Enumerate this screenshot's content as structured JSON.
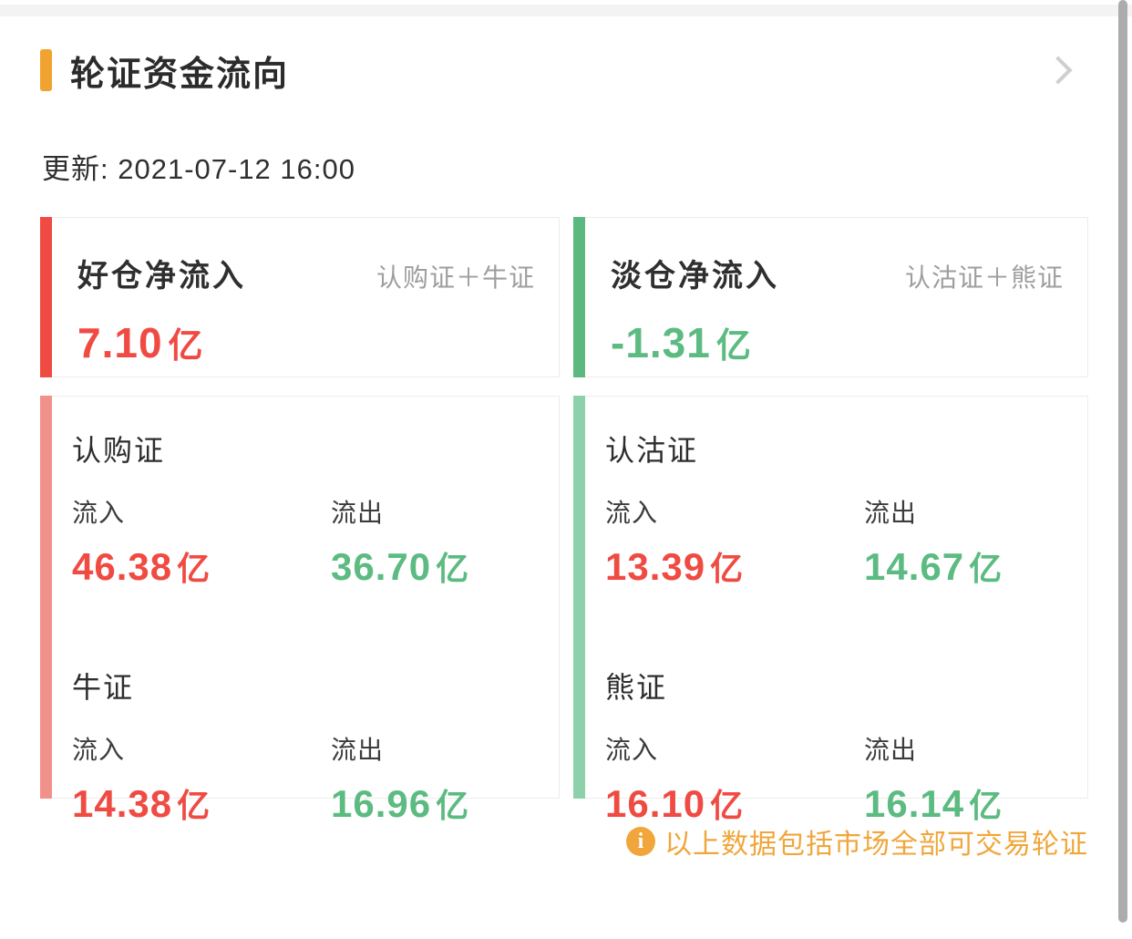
{
  "header": {
    "title": "轮证资金流向"
  },
  "updated": {
    "label": "更新: 2021-07-12 16:00"
  },
  "summary_cards": [
    {
      "title": "好仓净流入",
      "scope": "认购证＋牛证",
      "value": "7.10",
      "unit": "亿"
    },
    {
      "title": "淡仓净流入",
      "scope": "认沽证＋熊证",
      "value": "-1.31",
      "unit": "亿"
    }
  ],
  "detail_cards": [
    {
      "sections": [
        {
          "name": "认购证",
          "inflow_label": "流入",
          "inflow_value": "46.38",
          "inflow_unit": "亿",
          "outflow_label": "流出",
          "outflow_value": "36.70",
          "outflow_unit": "亿"
        },
        {
          "name": "牛证",
          "inflow_label": "流入",
          "inflow_value": "14.38",
          "inflow_unit": "亿",
          "outflow_label": "流出",
          "outflow_value": "16.96",
          "outflow_unit": "亿"
        }
      ]
    },
    {
      "sections": [
        {
          "name": "认沽证",
          "inflow_label": "流入",
          "inflow_value": "13.39",
          "inflow_unit": "亿",
          "outflow_label": "流出",
          "outflow_value": "14.67",
          "outflow_unit": "亿"
        },
        {
          "name": "熊证",
          "inflow_label": "流入",
          "inflow_value": "16.10",
          "inflow_unit": "亿",
          "outflow_label": "流出",
          "outflow_value": "16.14",
          "outflow_unit": "亿"
        }
      ]
    }
  ],
  "footer": {
    "icon_glyph": "i",
    "note": "以上数据包括市场全部可交易轮证"
  },
  "colors": {
    "accent_orange": "#F0A32E",
    "inflow_red": "#F04B43",
    "outflow_green": "#5BBB81",
    "summary_long_accent": "#F04B43",
    "summary_short_accent": "#5BB87E",
    "detail_long_accent": "#F0928A",
    "detail_short_accent": "#8DD1AA",
    "muted_gray": "#9E9E9E"
  }
}
